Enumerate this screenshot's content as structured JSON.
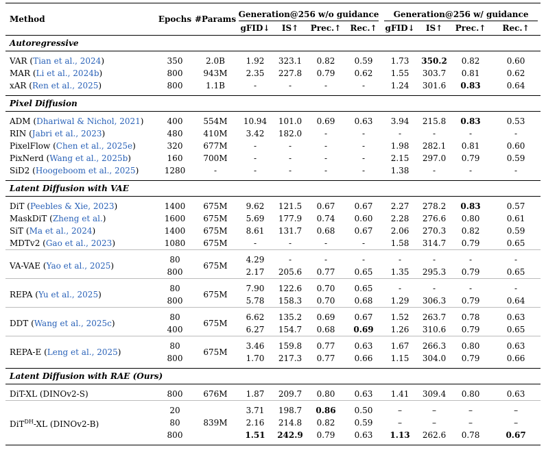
{
  "header": {
    "method": "Method",
    "epochs": "Epochs",
    "params": "#Params",
    "group_wo": "Generation@256 w/o guidance",
    "group_w": "Generation@256 w/ guidance",
    "gfid": "gFID↓",
    "is": "IS↑",
    "prec": "Prec.↑",
    "rec": "Rec.↑"
  },
  "sections": [
    {
      "title": "Autoregressive",
      "rows": [
        {
          "name": "VAR",
          "cite": "Tian et al., 2024",
          "epochs": "350",
          "params": "2.0B",
          "wo": [
            "1.92",
            "323.1",
            "0.82",
            "0.59"
          ],
          "w": [
            "1.73",
            "350.2",
            "0.82",
            "0.60"
          ],
          "bold_w": [
            1
          ]
        },
        {
          "name": "MAR",
          "cite": "Li et al., 2024b",
          "epochs": "800",
          "params": "943M",
          "wo": [
            "2.35",
            "227.8",
            "0.79",
            "0.62"
          ],
          "w": [
            "1.55",
            "303.7",
            "0.81",
            "0.62"
          ]
        },
        {
          "name": "xAR",
          "cite": "Ren et al., 2025",
          "epochs": "800",
          "params": "1.1B",
          "wo": [
            "-",
            "-",
            "-",
            "-"
          ],
          "w": [
            "1.24",
            "301.6",
            "0.83",
            "0.64"
          ],
          "bold_w": [
            2
          ]
        }
      ]
    },
    {
      "title": "Pixel Diffusion",
      "rows": [
        {
          "name": "ADM",
          "cite": "Dhariwal & Nichol, 2021",
          "epochs": "400",
          "params": "554M",
          "wo": [
            "10.94",
            "101.0",
            "0.69",
            "0.63"
          ],
          "w": [
            "3.94",
            "215.8",
            "0.83",
            "0.53"
          ],
          "bold_w": [
            2
          ]
        },
        {
          "name": "RIN",
          "cite": "Jabri et al., 2023",
          "epochs": "480",
          "params": "410M",
          "wo": [
            "3.42",
            "182.0",
            "-",
            "-"
          ],
          "w": [
            "-",
            "-",
            "-",
            "-"
          ]
        },
        {
          "name": "PixelFlow",
          "cite": "Chen et al., 2025e",
          "epochs": "320",
          "params": "677M",
          "wo": [
            "-",
            "-",
            "-",
            "-"
          ],
          "w": [
            "1.98",
            "282.1",
            "0.81",
            "0.60"
          ]
        },
        {
          "name": "PixNerd",
          "cite": "Wang et al., 2025b",
          "epochs": "160",
          "params": "700M",
          "wo": [
            "-",
            "-",
            "-",
            "-"
          ],
          "w": [
            "2.15",
            "297.0",
            "0.79",
            "0.59"
          ]
        },
        {
          "name": "SiD2",
          "cite": "Hoogeboom et al., 2025",
          "epochs": "1280",
          "params": "-",
          "wo": [
            "-",
            "-",
            "-",
            "-"
          ],
          "w": [
            "1.38",
            "-",
            "-",
            "-"
          ]
        }
      ]
    },
    {
      "title": "Latent Diffusion with VAE",
      "rows": [
        {
          "name": "DiT",
          "cite": "Peebles & Xie, 2023",
          "epochs": "1400",
          "params": "675M",
          "wo": [
            "9.62",
            "121.5",
            "0.67",
            "0.67"
          ],
          "w": [
            "2.27",
            "278.2",
            "0.83",
            "0.57"
          ],
          "bold_w": [
            2
          ]
        },
        {
          "name": "MaskDiT",
          "cite": "Zheng et al.",
          "epochs": "1600",
          "params": "675M",
          "wo": [
            "5.69",
            "177.9",
            "0.74",
            "0.60"
          ],
          "w": [
            "2.28",
            "276.6",
            "0.80",
            "0.61"
          ]
        },
        {
          "name": "SiT",
          "cite": "Ma et al., 2024",
          "epochs": "1400",
          "params": "675M",
          "wo": [
            "8.61",
            "131.7",
            "0.68",
            "0.67"
          ],
          "w": [
            "2.06",
            "270.3",
            "0.82",
            "0.59"
          ]
        },
        {
          "name": "MDTv2",
          "cite": "Gao et al., 2023",
          "epochs": "1080",
          "params": "675M",
          "wo": [
            "-",
            "-",
            "-",
            "-"
          ],
          "w": [
            "1.58",
            "314.7",
            "0.79",
            "0.65"
          ]
        }
      ],
      "groups": [
        {
          "name": "VA-VAE",
          "cite": "Yao et al., 2025",
          "params": "675M",
          "rows": [
            {
              "epochs": "80",
              "wo": [
                "4.29",
                "-",
                "-",
                "-"
              ],
              "w": [
                "-",
                "-",
                "-",
                "-"
              ]
            },
            {
              "epochs": "800",
              "wo": [
                "2.17",
                "205.6",
                "0.77",
                "0.65"
              ],
              "w": [
                "1.35",
                "295.3",
                "0.79",
                "0.65"
              ]
            }
          ]
        },
        {
          "name": "REPA",
          "cite": "Yu et al., 2025",
          "params": "675M",
          "rows": [
            {
              "epochs": "80",
              "wo": [
                "7.90",
                "122.6",
                "0.70",
                "0.65"
              ],
              "w": [
                "-",
                "-",
                "-",
                "-"
              ]
            },
            {
              "epochs": "800",
              "wo": [
                "5.78",
                "158.3",
                "0.70",
                "0.68"
              ],
              "w": [
                "1.29",
                "306.3",
                "0.79",
                "0.64"
              ]
            }
          ]
        },
        {
          "name": "DDT",
          "cite": "Wang et al., 2025c",
          "params": "675M",
          "rows": [
            {
              "epochs": "80",
              "wo": [
                "6.62",
                "135.2",
                "0.69",
                "0.67"
              ],
              "w": [
                "1.52",
                "263.7",
                "0.78",
                "0.63"
              ]
            },
            {
              "epochs": "400",
              "wo": [
                "6.27",
                "154.7",
                "0.68",
                "0.69"
              ],
              "w": [
                "1.26",
                "310.6",
                "0.79",
                "0.65"
              ],
              "bold_wo": [
                3
              ]
            }
          ]
        },
        {
          "name": "REPA-E",
          "cite": "Leng et al., 2025",
          "params": "675M",
          "rows": [
            {
              "epochs": "80",
              "wo": [
                "3.46",
                "159.8",
                "0.77",
                "0.63"
              ],
              "w": [
                "1.67",
                "266.3",
                "0.80",
                "0.63"
              ]
            },
            {
              "epochs": "800",
              "wo": [
                "1.70",
                "217.3",
                "0.77",
                "0.66"
              ],
              "w": [
                "1.15",
                "304.0",
                "0.79",
                "0.66"
              ]
            }
          ]
        }
      ]
    },
    {
      "title": "Latent Diffusion with RAE (Ours)",
      "rows": [
        {
          "name": "DiT-XL (DINOv2-S)",
          "epochs": "800",
          "params": "676M",
          "wo": [
            "1.87",
            "209.7",
            "0.80",
            "0.63"
          ],
          "w": [
            "1.41",
            "309.4",
            "0.80",
            "0.63"
          ]
        }
      ],
      "groups": [
        {
          "name": "DiT",
          "sup": "DH",
          "name_suffix": "-XL (DINOv2-B)",
          "params": "839M",
          "rows": [
            {
              "epochs": "20",
              "wo": [
                "3.71",
                "198.7",
                "0.86",
                "0.50"
              ],
              "w": [
                "–",
                "–",
                "–",
                "–"
              ],
              "bold_wo": [
                2
              ]
            },
            {
              "epochs": "80",
              "wo": [
                "2.16",
                "214.8",
                "0.82",
                "0.59"
              ],
              "w": [
                "–",
                "–",
                "–",
                "–"
              ]
            },
            {
              "epochs": "800",
              "wo": [
                "1.51",
                "242.9",
                "0.79",
                "0.63"
              ],
              "w": [
                "1.13",
                "262.6",
                "0.78",
                "0.67"
              ],
              "bold_wo": [
                0,
                1
              ],
              "bold_w": [
                0,
                3
              ]
            }
          ]
        }
      ]
    }
  ]
}
